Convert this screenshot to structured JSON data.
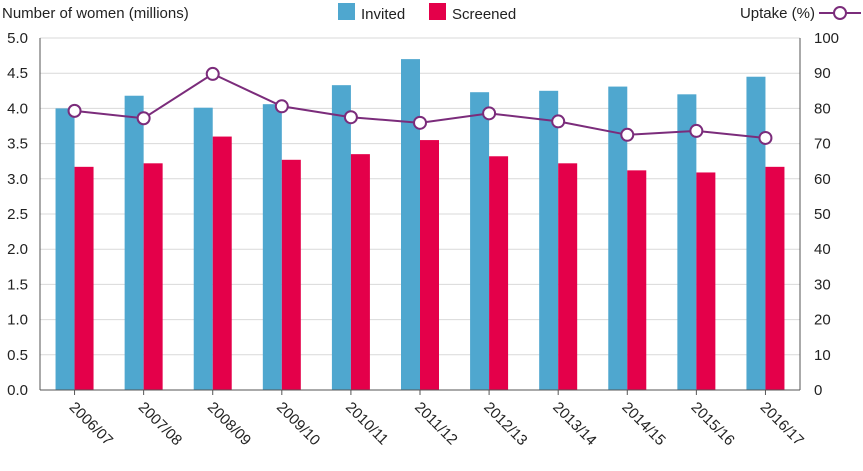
{
  "chart_data": {
    "type": "bar",
    "categories": [
      "2006/07",
      "2007/08",
      "2008/09",
      "2009/10",
      "2010/11",
      "2011/12",
      "2012/13",
      "2013/14",
      "2014/15",
      "2015/16",
      "2016/17"
    ],
    "series": [
      {
        "name": "Invited",
        "type": "bar",
        "axis": "left",
        "color": "#4FA7CF",
        "values": [
          4.0,
          4.18,
          4.01,
          4.06,
          4.33,
          4.7,
          4.23,
          4.25,
          4.31,
          4.2,
          4.45
        ]
      },
      {
        "name": "Screened",
        "type": "bar",
        "axis": "left",
        "color": "#E4004A",
        "values": [
          3.17,
          3.22,
          3.6,
          3.27,
          3.35,
          3.55,
          3.32,
          3.22,
          3.12,
          3.09,
          3.17
        ]
      },
      {
        "name": "Uptake (%)",
        "type": "line",
        "axis": "right",
        "color": "#7B2C7B",
        "values": [
          79.3,
          77.2,
          89.8,
          80.6,
          77.5,
          75.9,
          78.6,
          76.3,
          72.5,
          73.6,
          71.6
        ]
      }
    ],
    "ylabel_left": "Number of women (millions)",
    "ylabel_right": "Uptake (%)",
    "ylim_left": [
      0,
      5.0
    ],
    "ylim_right": [
      0,
      100
    ],
    "yticks_left": [
      "0.0",
      "0.5",
      "1.0",
      "1.5",
      "2.0",
      "2.5",
      "3.0",
      "3.5",
      "4.0",
      "4.5",
      "5.0"
    ],
    "yticks_right": [
      "0",
      "10",
      "20",
      "30",
      "40",
      "50",
      "60",
      "70",
      "80",
      "90",
      "100"
    ],
    "grid": "horizontal",
    "legend": "top"
  }
}
